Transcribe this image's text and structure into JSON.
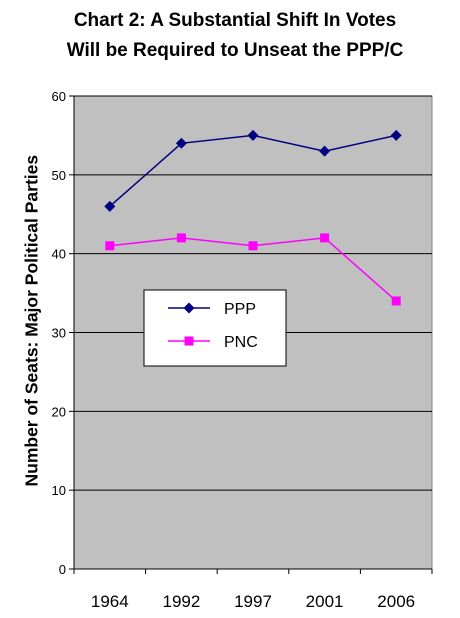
{
  "chart_data": {
    "type": "line",
    "title_line1": "Chart 2: A Substantial Shift In Votes",
    "title_line2": "Will be Required to Unseat the PPP/C",
    "ylabel": "Number of Seats: Major Political Parties",
    "xlabel": "",
    "categories": [
      "1964",
      "1992",
      "1997",
      "2001",
      "2006"
    ],
    "ylim": [
      0,
      60
    ],
    "yticks": [
      "0",
      "10",
      "20",
      "30",
      "40",
      "50",
      "60"
    ],
    "grid": "horizontal",
    "legend_position": "center-left",
    "series": [
      {
        "name": "PPP",
        "values": [
          46,
          54,
          55,
          53,
          55
        ],
        "color": "#000080",
        "marker": "diamond"
      },
      {
        "name": "PNC",
        "values": [
          41,
          42,
          41,
          42,
          34
        ],
        "color": "#ff00ff",
        "marker": "square"
      }
    ],
    "plot_background": "#c0c0c0"
  }
}
